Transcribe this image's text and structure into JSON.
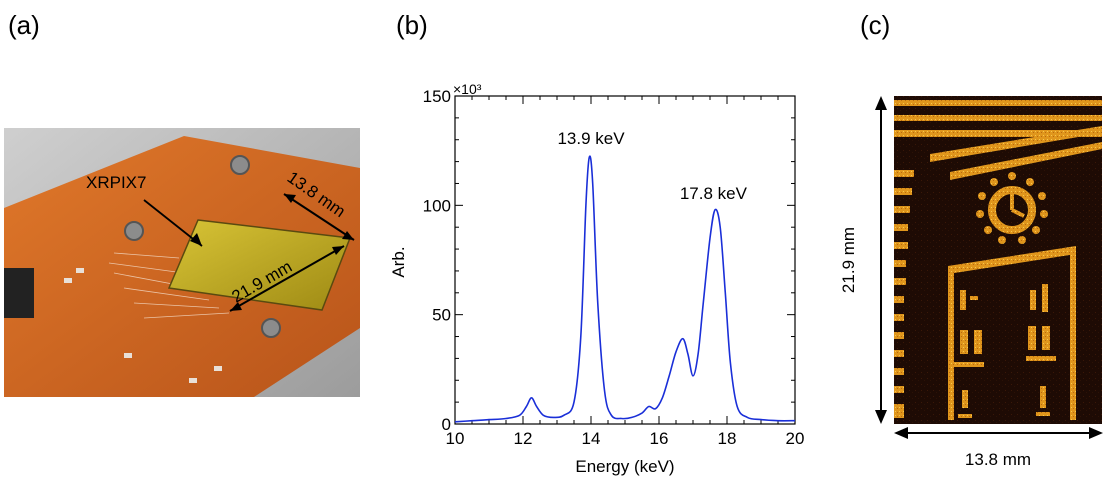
{
  "panels": {
    "a": {
      "label": "(a)"
    },
    "b": {
      "label": "(b)"
    },
    "c": {
      "label": "(c)"
    }
  },
  "photo": {
    "chip_label": "XRPIX7",
    "dim_width": "13.8 mm",
    "dim_height": "21.9 mm",
    "colors": {
      "pcb": "#d9661c",
      "sensor": "#c9b020",
      "background": "#c8c8c8"
    }
  },
  "image": {
    "dim_height": "21.9 mm",
    "dim_width": "13.8 mm",
    "colors": {
      "bright": "#e8a020",
      "dark": "#1a0a04"
    }
  },
  "chart_data": {
    "type": "line",
    "title": "",
    "xlabel": "Energy (keV)",
    "ylabel": "Arb.",
    "y_multiplier": "×10³",
    "xlim": [
      10,
      20
    ],
    "ylim": [
      0,
      150000
    ],
    "xticks": [
      10,
      12,
      14,
      16,
      18,
      20
    ],
    "yticks": [
      0,
      50000,
      100000,
      150000
    ],
    "ytick_labels": [
      "0",
      "50",
      "100",
      "150"
    ],
    "grid": false,
    "line_color": "#1a2fd8",
    "series": [
      {
        "x": [
          10.0,
          10.5,
          11.0,
          11.5,
          11.9,
          12.1,
          12.25,
          12.4,
          12.6,
          12.9,
          13.2,
          13.5,
          13.7,
          13.85,
          13.95,
          14.05,
          14.2,
          14.4,
          14.6,
          14.9,
          15.2,
          15.5,
          15.7,
          15.9,
          16.1,
          16.3,
          16.5,
          16.7,
          16.85,
          17.0,
          17.15,
          17.3,
          17.5,
          17.65,
          17.8,
          17.95,
          18.1,
          18.3,
          18.6,
          19.0,
          19.5,
          20.0
        ],
        "y": [
          1000,
          1500,
          2000,
          2500,
          4000,
          8000,
          12000,
          8000,
          4000,
          3000,
          4000,
          10000,
          40000,
          100000,
          122000,
          110000,
          55000,
          15000,
          4000,
          2500,
          3000,
          5000,
          8000,
          7000,
          12000,
          22000,
          33000,
          39000,
          32000,
          22000,
          32000,
          55000,
          85000,
          98000,
          90000,
          60000,
          28000,
          8000,
          3000,
          2000,
          1500,
          1500
        ]
      }
    ],
    "annotations": [
      {
        "text": "13.9 keV",
        "x": 14.0,
        "y": 128000
      },
      {
        "text": "17.8 keV",
        "x": 17.6,
        "y": 103000
      }
    ]
  }
}
